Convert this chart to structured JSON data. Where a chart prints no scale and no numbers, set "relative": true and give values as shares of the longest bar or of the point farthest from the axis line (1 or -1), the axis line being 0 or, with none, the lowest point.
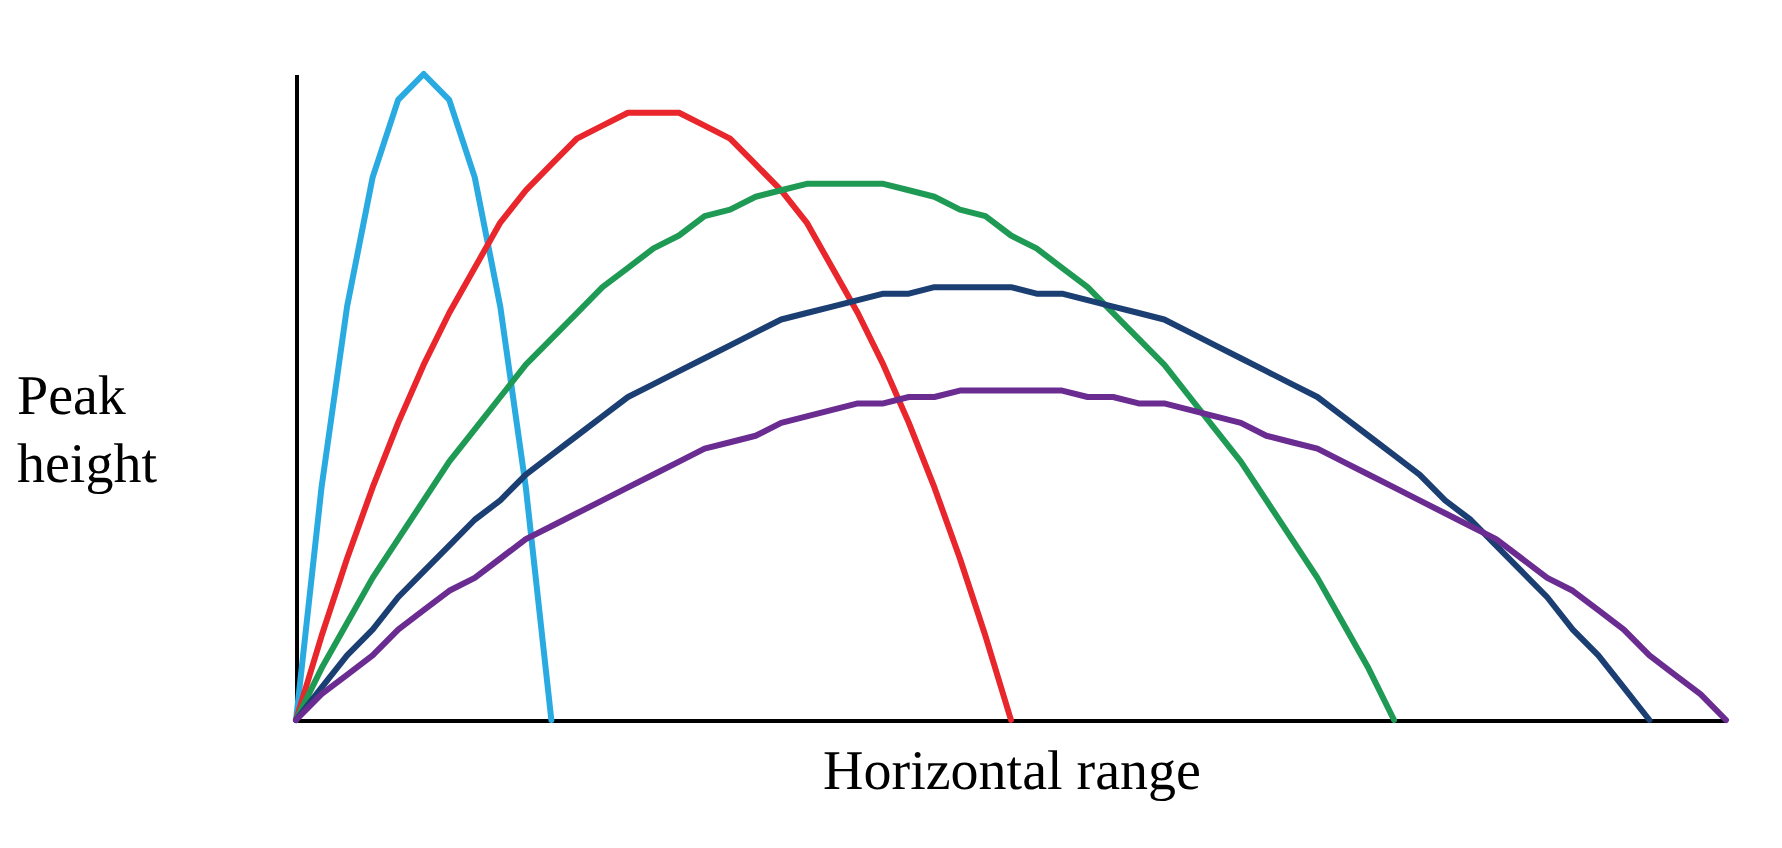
{
  "chart_data": {
    "type": "line",
    "relative": true,
    "xlabel": "Horizontal range",
    "ylabel": "Peak height",
    "grid": false,
    "legend": false,
    "tick_labels": false,
    "marker": "none",
    "line_style": "solid",
    "categories": [
      null,
      null,
      null,
      null,
      null,
      null,
      null,
      null,
      null,
      null,
      null,
      null,
      null,
      null,
      null,
      null,
      null,
      null,
      null,
      null,
      null,
      null,
      null,
      null,
      null,
      null,
      null,
      null,
      null,
      null,
      null,
      null,
      null,
      null,
      null,
      null,
      null,
      null,
      null,
      null,
      null,
      null,
      null,
      null,
      null,
      null,
      null,
      null,
      null,
      null,
      null,
      null,
      null,
      null,
      null,
      null,
      null
    ],
    "series": [
      {
        "color": "#29abe2",
        "values": [
          0,
          0.36,
          0.64,
          0.84,
          0.96,
          1,
          0.96,
          0.84,
          0.64,
          0.36,
          0,
          null,
          null,
          null,
          null,
          null,
          null,
          null,
          null,
          null,
          null,
          null,
          null,
          null,
          null,
          null,
          null,
          null,
          null,
          null,
          null,
          null,
          null,
          null,
          null,
          null,
          null,
          null,
          null,
          null,
          null,
          null,
          null,
          null,
          null,
          null,
          null,
          null,
          null,
          null,
          null,
          null,
          null,
          null,
          null,
          null,
          null
        ]
      },
      {
        "color": "#e8262b",
        "values": [
          0,
          0.13,
          0.25,
          0.36,
          0.46,
          0.55,
          0.63,
          0.7,
          0.77,
          0.82,
          0.86,
          0.9,
          0.92,
          0.94,
          0.94,
          0.94,
          0.92,
          0.9,
          0.86,
          0.82,
          0.77,
          0.7,
          0.63,
          0.55,
          0.46,
          0.36,
          0.25,
          0.13,
          0,
          null,
          null,
          null,
          null,
          null,
          null,
          null,
          null,
          null,
          null,
          null,
          null,
          null,
          null,
          null,
          null,
          null,
          null,
          null,
          null,
          null,
          null,
          null,
          null,
          null,
          null,
          null,
          null
        ]
      },
      {
        "color": "#1f9a55",
        "values": [
          0,
          0.08,
          0.15,
          0.22,
          0.28,
          0.34,
          0.4,
          0.45,
          0.5,
          0.55,
          0.59,
          0.63,
          0.67,
          0.7,
          0.73,
          0.75,
          0.78,
          0.79,
          0.81,
          0.82,
          0.83,
          0.83,
          0.83,
          0.83,
          0.82,
          0.81,
          0.79,
          0.78,
          0.75,
          0.73,
          0.7,
          0.67,
          0.63,
          0.59,
          0.55,
          0.5,
          0.45,
          0.4,
          0.34,
          0.28,
          0.22,
          0.15,
          0.08,
          0,
          null,
          null,
          null,
          null,
          null,
          null,
          null,
          null,
          null,
          null,
          null,
          null,
          null
        ]
      },
      {
        "color": "#1b3f73",
        "values": [
          0,
          0.05,
          0.1,
          0.14,
          0.19,
          0.23,
          0.27,
          0.31,
          0.34,
          0.38,
          0.41,
          0.44,
          0.47,
          0.5,
          0.52,
          0.54,
          0.56,
          0.58,
          0.6,
          0.62,
          0.63,
          0.64,
          0.65,
          0.66,
          0.66,
          0.67,
          0.67,
          0.67,
          0.67,
          0.66,
          0.66,
          0.65,
          0.64,
          0.63,
          0.62,
          0.6,
          0.58,
          0.56,
          0.54,
          0.52,
          0.5,
          0.47,
          0.44,
          0.41,
          0.38,
          0.34,
          0.31,
          0.27,
          0.23,
          0.19,
          0.14,
          0.1,
          0.05,
          0,
          null,
          null,
          null
        ]
      },
      {
        "color": "#6a2c91",
        "values": [
          0,
          0.04,
          0.07,
          0.1,
          0.14,
          0.17,
          0.2,
          0.22,
          0.25,
          0.28,
          0.3,
          0.32,
          0.34,
          0.36,
          0.38,
          0.4,
          0.42,
          0.43,
          0.44,
          0.46,
          0.47,
          0.48,
          0.49,
          0.49,
          0.5,
          0.5,
          0.51,
          0.51,
          0.51,
          0.51,
          0.51,
          0.5,
          0.5,
          0.49,
          0.49,
          0.48,
          0.47,
          0.46,
          0.44,
          0.43,
          0.42,
          0.4,
          0.38,
          0.36,
          0.34,
          0.32,
          0.3,
          0.28,
          0.25,
          0.22,
          0.2,
          0.17,
          0.14,
          0.1,
          0.07,
          0.04,
          0
        ]
      }
    ]
  }
}
